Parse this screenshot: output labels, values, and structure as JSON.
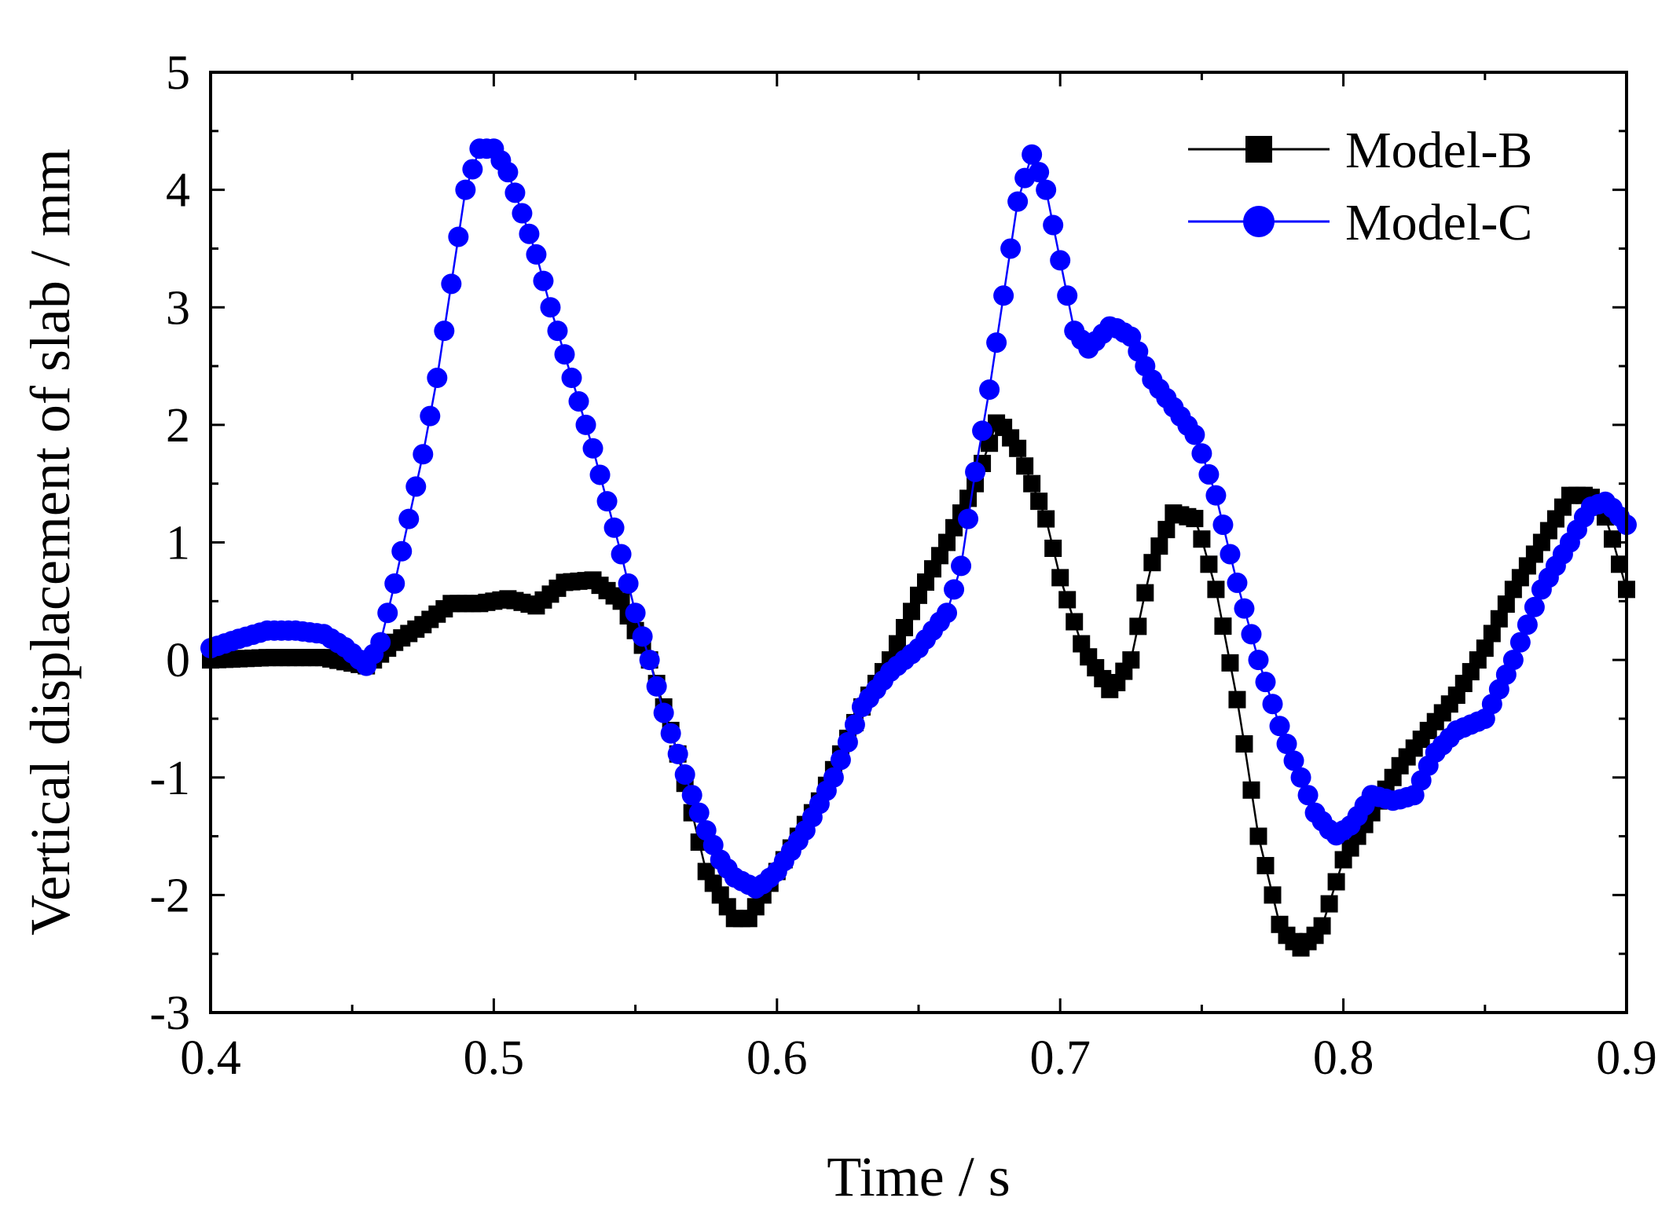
{
  "chart_data": {
    "type": "line",
    "title": "",
    "xlabel": "Time / s",
    "ylabel": "Vertical  displacement of slab / mm",
    "xlim": [
      0.4,
      0.9
    ],
    "ylim": [
      -3,
      5
    ],
    "xticks": [
      0.4,
      0.5,
      0.6,
      0.7,
      0.8,
      0.9
    ],
    "yticks": [
      -3,
      -2,
      -1,
      0,
      1,
      2,
      3,
      4,
      5
    ],
    "xtick_labels": [
      "0.4",
      "0.5",
      "0.6",
      "0.7",
      "0.8",
      "0.9"
    ],
    "ytick_labels": [
      "-3",
      "-2",
      "-1",
      "0",
      "1",
      "2",
      "3",
      "4",
      "5"
    ],
    "grid": false,
    "legend_position": "top-right",
    "series": [
      {
        "name": "Model-B",
        "color": "#000000",
        "marker": "square",
        "points": [
          [
            0.4,
            0.0
          ],
          [
            0.42,
            0.02
          ],
          [
            0.44,
            0.02
          ],
          [
            0.455,
            -0.05
          ],
          [
            0.465,
            0.15
          ],
          [
            0.475,
            0.3
          ],
          [
            0.485,
            0.48
          ],
          [
            0.495,
            0.48
          ],
          [
            0.505,
            0.52
          ],
          [
            0.515,
            0.46
          ],
          [
            0.525,
            0.66
          ],
          [
            0.535,
            0.68
          ],
          [
            0.545,
            0.5
          ],
          [
            0.555,
            0.0
          ],
          [
            0.565,
            -0.8
          ],
          [
            0.575,
            -1.8
          ],
          [
            0.585,
            -2.2
          ],
          [
            0.59,
            -2.2
          ],
          [
            0.6,
            -1.8
          ],
          [
            0.615,
            -1.2
          ],
          [
            0.63,
            -0.4
          ],
          [
            0.64,
            0.0
          ],
          [
            0.65,
            0.55
          ],
          [
            0.66,
            1.0
          ],
          [
            0.67,
            1.5
          ],
          [
            0.678,
            2.05
          ],
          [
            0.685,
            1.8
          ],
          [
            0.695,
            1.2
          ],
          [
            0.7,
            0.7
          ],
          [
            0.708,
            0.1
          ],
          [
            0.718,
            -0.27
          ],
          [
            0.725,
            0.0
          ],
          [
            0.732,
            0.8
          ],
          [
            0.74,
            1.25
          ],
          [
            0.748,
            1.2
          ],
          [
            0.755,
            0.6
          ],
          [
            0.763,
            -0.4
          ],
          [
            0.77,
            -1.5
          ],
          [
            0.778,
            -2.3
          ],
          [
            0.785,
            -2.45
          ],
          [
            0.792,
            -2.3
          ],
          [
            0.8,
            -1.7
          ],
          [
            0.81,
            -1.3
          ],
          [
            0.82,
            -0.9
          ],
          [
            0.83,
            -0.6
          ],
          [
            0.84,
            -0.3
          ],
          [
            0.85,
            0.1
          ],
          [
            0.86,
            0.6
          ],
          [
            0.87,
            1.0
          ],
          [
            0.88,
            1.4
          ],
          [
            0.887,
            1.4
          ],
          [
            0.893,
            1.2
          ],
          [
            0.9,
            0.6
          ]
        ]
      },
      {
        "name": "Model-C",
        "color": "#0000ff",
        "marker": "circle",
        "points": [
          [
            0.4,
            0.1
          ],
          [
            0.41,
            0.18
          ],
          [
            0.42,
            0.25
          ],
          [
            0.43,
            0.25
          ],
          [
            0.44,
            0.22
          ],
          [
            0.448,
            0.1
          ],
          [
            0.455,
            -0.05
          ],
          [
            0.46,
            0.15
          ],
          [
            0.465,
            0.65
          ],
          [
            0.47,
            1.2
          ],
          [
            0.475,
            1.75
          ],
          [
            0.48,
            2.4
          ],
          [
            0.485,
            3.2
          ],
          [
            0.49,
            4.0
          ],
          [
            0.495,
            4.35
          ],
          [
            0.5,
            4.35
          ],
          [
            0.505,
            4.15
          ],
          [
            0.51,
            3.8
          ],
          [
            0.515,
            3.45
          ],
          [
            0.52,
            3.0
          ],
          [
            0.525,
            2.6
          ],
          [
            0.53,
            2.2
          ],
          [
            0.535,
            1.8
          ],
          [
            0.54,
            1.35
          ],
          [
            0.545,
            0.9
          ],
          [
            0.55,
            0.4
          ],
          [
            0.555,
            0.0
          ],
          [
            0.56,
            -0.45
          ],
          [
            0.565,
            -0.8
          ],
          [
            0.57,
            -1.15
          ],
          [
            0.575,
            -1.45
          ],
          [
            0.58,
            -1.7
          ],
          [
            0.585,
            -1.85
          ],
          [
            0.593,
            -1.95
          ],
          [
            0.6,
            -1.8
          ],
          [
            0.61,
            -1.45
          ],
          [
            0.62,
            -1.0
          ],
          [
            0.63,
            -0.4
          ],
          [
            0.64,
            -0.1
          ],
          [
            0.65,
            0.1
          ],
          [
            0.66,
            0.4
          ],
          [
            0.665,
            0.8
          ],
          [
            0.67,
            1.6
          ],
          [
            0.675,
            2.3
          ],
          [
            0.68,
            3.1
          ],
          [
            0.685,
            3.9
          ],
          [
            0.69,
            4.3
          ],
          [
            0.695,
            4.0
          ],
          [
            0.7,
            3.4
          ],
          [
            0.705,
            2.8
          ],
          [
            0.71,
            2.65
          ],
          [
            0.718,
            2.85
          ],
          [
            0.725,
            2.75
          ],
          [
            0.732,
            2.4
          ],
          [
            0.74,
            2.15
          ],
          [
            0.748,
            1.9
          ],
          [
            0.755,
            1.4
          ],
          [
            0.762,
            0.7
          ],
          [
            0.77,
            0.0
          ],
          [
            0.778,
            -0.6
          ],
          [
            0.785,
            -1.0
          ],
          [
            0.79,
            -1.3
          ],
          [
            0.797,
            -1.5
          ],
          [
            0.803,
            -1.4
          ],
          [
            0.81,
            -1.15
          ],
          [
            0.818,
            -1.2
          ],
          [
            0.825,
            -1.15
          ],
          [
            0.832,
            -0.8
          ],
          [
            0.84,
            -0.6
          ],
          [
            0.85,
            -0.5
          ],
          [
            0.86,
            0.0
          ],
          [
            0.87,
            0.6
          ],
          [
            0.88,
            1.0
          ],
          [
            0.887,
            1.3
          ],
          [
            0.893,
            1.35
          ],
          [
            0.9,
            1.15
          ]
        ]
      }
    ]
  }
}
